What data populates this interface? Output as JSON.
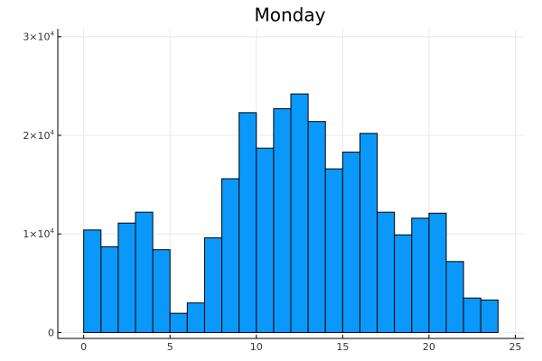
{
  "chart_data": {
    "type": "bar",
    "title": "Monday",
    "xlabel": "",
    "ylabel": "",
    "xlim": [
      -1.5,
      25.5
    ],
    "ylim": [
      -600,
      30800
    ],
    "grid": true,
    "bar_color": "#0a99fa",
    "bar_stroke": "#000000",
    "x_ticks": [
      0,
      5,
      10,
      15,
      20,
      25
    ],
    "y_ticks": [
      {
        "value": 0,
        "label": "0"
      },
      {
        "value": 10000,
        "label": "1×10",
        "exp": "4"
      },
      {
        "value": 20000,
        "label": "2×10",
        "exp": "4"
      },
      {
        "value": 30000,
        "label": "3×10",
        "exp": "4"
      }
    ],
    "bins": [
      {
        "x0": 0,
        "x1": 1,
        "value": 10400
      },
      {
        "x0": 1,
        "x1": 2,
        "value": 8700
      },
      {
        "x0": 2,
        "x1": 3,
        "value": 11100
      },
      {
        "x0": 3,
        "x1": 4,
        "value": 12200
      },
      {
        "x0": 4,
        "x1": 5,
        "value": 8400
      },
      {
        "x0": 5,
        "x1": 6,
        "value": 1950
      },
      {
        "x0": 6,
        "x1": 7,
        "value": 3000
      },
      {
        "x0": 7,
        "x1": 8,
        "value": 9600
      },
      {
        "x0": 8,
        "x1": 9,
        "value": 15600
      },
      {
        "x0": 9,
        "x1": 10,
        "value": 22300
      },
      {
        "x0": 10,
        "x1": 11,
        "value": 18700
      },
      {
        "x0": 11,
        "x1": 12,
        "value": 22700
      },
      {
        "x0": 12,
        "x1": 13,
        "value": 24200
      },
      {
        "x0": 13,
        "x1": 14,
        "value": 21400
      },
      {
        "x0": 14,
        "x1": 15,
        "value": 16600
      },
      {
        "x0": 15,
        "x1": 16,
        "value": 18300
      },
      {
        "x0": 16,
        "x1": 17,
        "value": 20200
      },
      {
        "x0": 17,
        "x1": 18,
        "value": 12200
      },
      {
        "x0": 18,
        "x1": 19,
        "value": 9900
      },
      {
        "x0": 19,
        "x1": 20,
        "value": 11600
      },
      {
        "x0": 20,
        "x1": 21,
        "value": 12100
      },
      {
        "x0": 21,
        "x1": 22,
        "value": 7200
      },
      {
        "x0": 22,
        "x1": 23,
        "value": 3500
      },
      {
        "x0": 23,
        "x1": 24,
        "value": 3300
      }
    ]
  }
}
